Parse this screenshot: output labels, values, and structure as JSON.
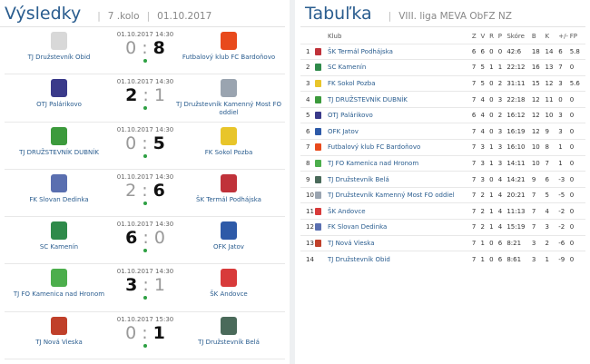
{
  "results": {
    "title": "Výsledky",
    "round": "7 .kolo",
    "date": "01.10.2017",
    "matches": [
      {
        "time": "01.10.2017 14:30",
        "home": "TJ Družstevník Obid",
        "away": "Futbalový klub FC Bardoňovo",
        "home_goals": "0",
        "away_goals": "8",
        "winner": "away",
        "home_color": "#d8d8d8",
        "away_color": "#e84a1c"
      },
      {
        "time": "01.10.2017 14:30",
        "home": "OTJ Palárikovo",
        "away": "TJ Družstevník Kamenný Most FO oddiel",
        "home_goals": "2",
        "away_goals": "1",
        "winner": "home",
        "home_color": "#3a3a8a",
        "away_color": "#9aa4b0"
      },
      {
        "time": "01.10.2017 14:30",
        "home": "TJ DRUŽSTEVNÍK DUBNÍK",
        "away": "FK Sokol Pozba",
        "home_goals": "0",
        "away_goals": "5",
        "winner": "away",
        "home_color": "#3c9a3c",
        "away_color": "#e8c52a"
      },
      {
        "time": "01.10.2017 14:30",
        "home": "FK Slovan Dedinka",
        "away": "ŠK Termál Podhájska",
        "home_goals": "2",
        "away_goals": "6",
        "winner": "away",
        "home_color": "#5a6fb0",
        "away_color": "#c0323a"
      },
      {
        "time": "01.10.2017 14:30",
        "home": "SC Kamenín",
        "away": "OFK Jatov",
        "home_goals": "6",
        "away_goals": "0",
        "winner": "home",
        "home_color": "#2e8a4a",
        "away_color": "#2e5aa8"
      },
      {
        "time": "01.10.2017 14:30",
        "home": "TJ FO Kamenica nad Hronom",
        "away": "ŠK Andovce",
        "home_goals": "3",
        "away_goals": "1",
        "winner": "home",
        "home_color": "#4cae4c",
        "away_color": "#d83a3a"
      },
      {
        "time": "01.10.2017 15:30",
        "home": "TJ Nová Vieska",
        "away": "TJ Družstevník Belá",
        "home_goals": "0",
        "away_goals": "1",
        "winner": "away",
        "home_color": "#c0402a",
        "away_color": "#4a6a5a"
      }
    ]
  },
  "table": {
    "title": "Tabuľka",
    "league": "VIII. liga MEVA ObFZ NZ",
    "headers": [
      "",
      "",
      "Klub",
      "Z",
      "V",
      "R",
      "P",
      "Skóre",
      "B",
      "K",
      "+/-",
      "FP"
    ],
    "rows": [
      [
        "1",
        "ŠK Termál Podhájska",
        "6",
        "6",
        "0",
        "0",
        "42:6",
        "18",
        "14",
        "6",
        "5.8",
        "#c0323a"
      ],
      [
        "2",
        "SC Kamenín",
        "7",
        "5",
        "1",
        "1",
        "22:12",
        "16",
        "13",
        "7",
        "0",
        "#2e8a4a"
      ],
      [
        "3",
        "FK Sokol Pozba",
        "7",
        "5",
        "0",
        "2",
        "31:11",
        "15",
        "12",
        "3",
        "5.6",
        "#e8c52a"
      ],
      [
        "4",
        "TJ DRUŽSTEVNÍK DUBNÍK",
        "7",
        "4",
        "0",
        "3",
        "22:18",
        "12",
        "11",
        "0",
        "0",
        "#3c9a3c"
      ],
      [
        "5",
        "OTJ Palárikovo",
        "6",
        "4",
        "0",
        "2",
        "16:12",
        "12",
        "10",
        "3",
        "0",
        "#3a3a8a"
      ],
      [
        "6",
        "OFK Jatov",
        "7",
        "4",
        "0",
        "3",
        "16:19",
        "12",
        "9",
        "3",
        "0",
        "#2e5aa8"
      ],
      [
        "7",
        "Futbalový klub FC Bardoňovo",
        "7",
        "3",
        "1",
        "3",
        "16:10",
        "10",
        "8",
        "1",
        "0",
        "#e84a1c"
      ],
      [
        "8",
        "TJ FO Kamenica nad Hronom",
        "7",
        "3",
        "1",
        "3",
        "14:11",
        "10",
        "7",
        "1",
        "0",
        "#4cae4c"
      ],
      [
        "9",
        "TJ Družstevník Belá",
        "7",
        "3",
        "0",
        "4",
        "14:21",
        "9",
        "6",
        "-3",
        "0",
        "#4a6a5a"
      ],
      [
        "10",
        "TJ Družstevník Kamenný Most FO oddiel",
        "7",
        "2",
        "1",
        "4",
        "20:21",
        "7",
        "5",
        "-5",
        "0",
        "#9aa4b0"
      ],
      [
        "11",
        "ŠK Andovce",
        "7",
        "2",
        "1",
        "4",
        "11:13",
        "7",
        "4",
        "-2",
        "0",
        "#d83a3a"
      ],
      [
        "12",
        "FK Slovan Dedinka",
        "7",
        "2",
        "1",
        "4",
        "15:19",
        "7",
        "3",
        "-2",
        "0",
        "#5a6fb0"
      ],
      [
        "13",
        "TJ Nová Vieska",
        "7",
        "1",
        "0",
        "6",
        "8:21",
        "3",
        "2",
        "-6",
        "0",
        "#c0402a"
      ],
      [
        "14",
        "TJ Družstevník Obid",
        "7",
        "1",
        "0",
        "6",
        "8:61",
        "3",
        "1",
        "-9",
        "0",
        ""
      ]
    ]
  }
}
